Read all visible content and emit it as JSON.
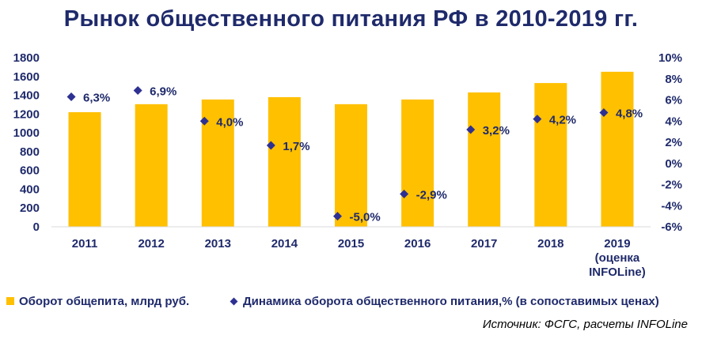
{
  "title": "Рынок общественного питания РФ в 2010-2019 гг.",
  "source": "Источник: ФСГС, расчеты INFOLine",
  "colors": {
    "bar": "#ffc000",
    "marker": "#2e3192",
    "text": "#1f2a6b"
  },
  "chart_data": {
    "type": "bar",
    "title": "Рынок общественного питания РФ в 2010-2019 гг.",
    "categories": [
      "2011",
      "2012",
      "2013",
      "2014",
      "2015",
      "2016",
      "2017",
      "2018",
      "2019 (оценка INFOLine)"
    ],
    "category_lines": [
      [
        "2011"
      ],
      [
        "2012"
      ],
      [
        "2013"
      ],
      [
        "2014"
      ],
      [
        "2015"
      ],
      [
        "2016"
      ],
      [
        "2017"
      ],
      [
        "2018"
      ],
      [
        "2019",
        "(оценка",
        "INFOLine)"
      ]
    ],
    "series": [
      {
        "name": "Оборот общепита, млрд руб.",
        "type": "bar",
        "axis": "left",
        "values": [
          1220,
          1305,
          1355,
          1380,
          1305,
          1355,
          1430,
          1530,
          1650
        ]
      },
      {
        "name": "Динамика оборота общественного питания,% (в сопоставимых ценах)",
        "type": "scatter",
        "marker": "diamond",
        "axis": "right",
        "values": [
          6.3,
          6.9,
          4.0,
          1.7,
          -5.0,
          -2.9,
          3.2,
          4.2,
          4.8
        ],
        "labels": [
          "6,3%",
          "6,9%",
          "4,0%",
          "1,7%",
          "-5,0%",
          "-2,9%",
          "3,2%",
          "4,2%",
          "4,8%"
        ]
      }
    ],
    "y_left": {
      "range": [
        0,
        1800
      ],
      "ticks": [
        0,
        200,
        400,
        600,
        800,
        1000,
        1200,
        1400,
        1600,
        1800
      ],
      "tick_labels": [
        "0",
        "200",
        "400",
        "600",
        "800",
        "1000",
        "1200",
        "1400",
        "1600",
        "1800"
      ]
    },
    "y_right": {
      "range": [
        -6,
        10
      ],
      "ticks": [
        -6,
        -4,
        -2,
        0,
        2,
        4,
        6,
        8,
        10
      ],
      "tick_labels": [
        "-6%",
        "-4%",
        "-2%",
        "0%",
        "2%",
        "4%",
        "6%",
        "8%",
        "10%"
      ]
    },
    "grid": false,
    "legend": "bottom"
  }
}
